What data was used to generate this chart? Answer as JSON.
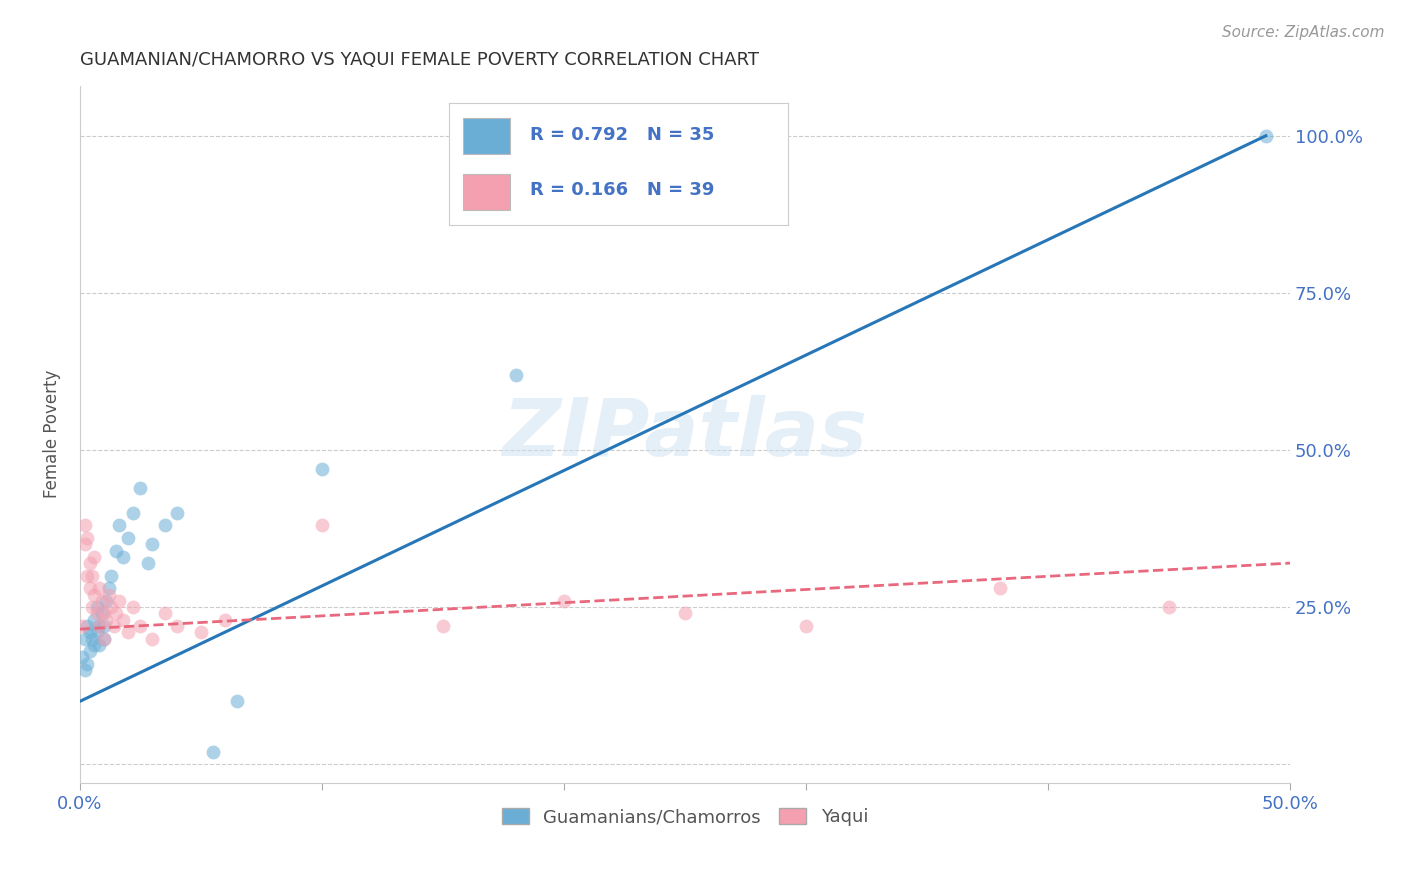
{
  "title": "GUAMANIAN/CHAMORRO VS YAQUI FEMALE POVERTY CORRELATION CHART",
  "source": "Source: ZipAtlas.com",
  "xlabel_blue": "Guamanians/Chamorros",
  "xlabel_pink": "Yaqui",
  "ylabel": "Female Poverty",
  "watermark": "ZIPatlas",
  "blue_R": 0.792,
  "blue_N": 35,
  "pink_R": 0.166,
  "pink_N": 39,
  "xlim": [
    0.0,
    0.5
  ],
  "ylim": [
    -0.03,
    1.08
  ],
  "xticks": [
    0.0,
    0.1,
    0.2,
    0.3,
    0.4,
    0.5
  ],
  "xtick_labels": [
    "0.0%",
    "",
    "",
    "",
    "",
    "50.0%"
  ],
  "ytick_positions": [
    0.0,
    0.25,
    0.5,
    0.75,
    1.0
  ],
  "ytick_labels": [
    "",
    "25.0%",
    "50.0%",
    "75.0%",
    "100.0%"
  ],
  "blue_color": "#6aaed6",
  "pink_color": "#f4a0b0",
  "blue_line_color": "#2777b8",
  "pink_line_color": "#e8697d",
  "grid_color": "#cccccc",
  "title_color": "#333333",
  "axis_label_color": "#4472c4",
  "blue_scatter_x": [
    0.001,
    0.002,
    0.002,
    0.003,
    0.003,
    0.004,
    0.004,
    0.005,
    0.006,
    0.006,
    0.007,
    0.007,
    0.008,
    0.008,
    0.009,
    0.01,
    0.01,
    0.011,
    0.012,
    0.013,
    0.015,
    0.016,
    0.018,
    0.02,
    0.022,
    0.025,
    0.028,
    0.03,
    0.035,
    0.04,
    0.055,
    0.065,
    0.1,
    0.18,
    0.49
  ],
  "blue_scatter_y": [
    0.17,
    0.2,
    0.15,
    0.16,
    0.22,
    0.18,
    0.21,
    0.2,
    0.19,
    0.23,
    0.21,
    0.25,
    0.19,
    0.22,
    0.24,
    0.2,
    0.22,
    0.26,
    0.28,
    0.3,
    0.34,
    0.38,
    0.33,
    0.36,
    0.4,
    0.44,
    0.32,
    0.35,
    0.38,
    0.4,
    0.02,
    0.1,
    0.47,
    0.62,
    1.0
  ],
  "pink_scatter_x": [
    0.001,
    0.002,
    0.002,
    0.003,
    0.003,
    0.004,
    0.004,
    0.005,
    0.005,
    0.006,
    0.006,
    0.007,
    0.008,
    0.008,
    0.009,
    0.01,
    0.01,
    0.011,
    0.012,
    0.013,
    0.014,
    0.015,
    0.016,
    0.018,
    0.02,
    0.022,
    0.025,
    0.03,
    0.035,
    0.04,
    0.05,
    0.06,
    0.1,
    0.15,
    0.2,
    0.25,
    0.3,
    0.38,
    0.45
  ],
  "pink_scatter_y": [
    0.22,
    0.35,
    0.38,
    0.3,
    0.36,
    0.28,
    0.32,
    0.25,
    0.3,
    0.27,
    0.33,
    0.24,
    0.28,
    0.22,
    0.26,
    0.2,
    0.24,
    0.23,
    0.27,
    0.25,
    0.22,
    0.24,
    0.26,
    0.23,
    0.21,
    0.25,
    0.22,
    0.2,
    0.24,
    0.22,
    0.21,
    0.23,
    0.38,
    0.22,
    0.26,
    0.24,
    0.22,
    0.28,
    0.25
  ],
  "blue_trendline_x": [
    0.0,
    0.49
  ],
  "blue_trendline_y": [
    0.1,
    1.0
  ],
  "pink_trendline_x": [
    0.0,
    0.5
  ],
  "pink_trendline_y": [
    0.215,
    0.32
  ]
}
